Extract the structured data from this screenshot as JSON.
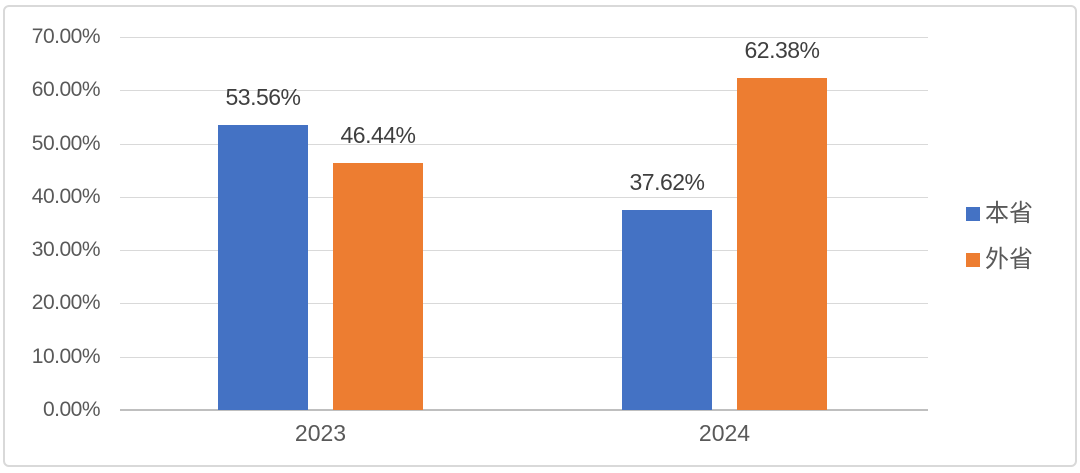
{
  "chart_data": {
    "type": "bar",
    "title": "",
    "categories": [
      "2023",
      "2024"
    ],
    "series": [
      {
        "name": "本省",
        "color": "#4472C4",
        "values": [
          53.56,
          37.62
        ],
        "labels": [
          "53.56%",
          "37.62%"
        ]
      },
      {
        "name": "外省",
        "color": "#ED7D31",
        "values": [
          46.44,
          62.38
        ],
        "labels": [
          "46.44%",
          "62.38%"
        ]
      }
    ],
    "ylim": [
      0,
      70
    ],
    "yticks": [
      {
        "value": 0,
        "label": "0.00%"
      },
      {
        "value": 10,
        "label": "10.00%"
      },
      {
        "value": 20,
        "label": "20.00%"
      },
      {
        "value": 30,
        "label": "30.00%"
      },
      {
        "value": 40,
        "label": "40.00%"
      },
      {
        "value": 50,
        "label": "50.00%"
      },
      {
        "value": 60,
        "label": "60.00%"
      },
      {
        "value": 70,
        "label": "70.00%"
      }
    ],
    "grid": "horizontal-only",
    "legend_position": "right"
  },
  "colors": {
    "gridline": "#D9D9D9",
    "axis_line": "#BFBFBF",
    "tick_text": "#595959",
    "category_text": "#595959",
    "data_label_text": "#3F3F3F",
    "legend_text": "#595959",
    "frame_border": "#D9D9D9"
  }
}
